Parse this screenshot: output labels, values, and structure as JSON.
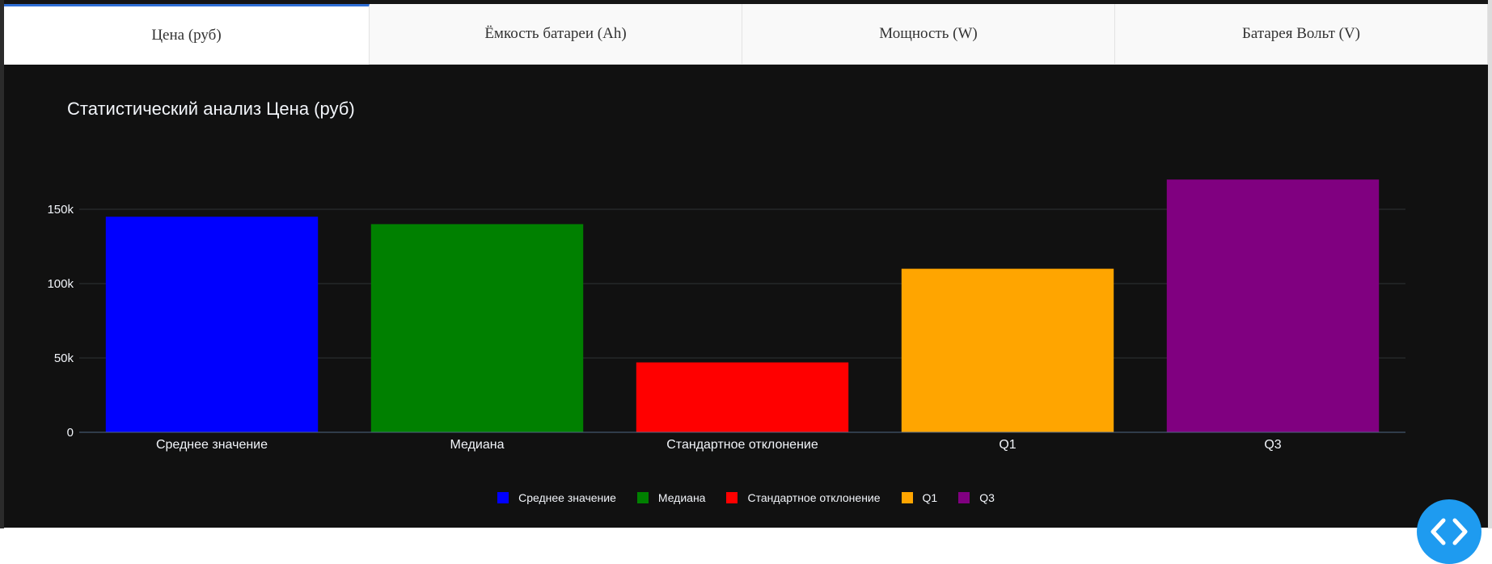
{
  "tabs": [
    {
      "label": "Цена (руб)",
      "active": true
    },
    {
      "label": "Ёмкость батареи (Ah)",
      "active": false
    },
    {
      "label": "Мощность (W)",
      "active": false
    },
    {
      "label": "Батарея Вольт (V)",
      "active": false
    }
  ],
  "chart_data": {
    "type": "bar",
    "title": "Статистический анализ Цена (руб)",
    "xlabel": "",
    "ylabel": "",
    "categories": [
      "Среднее значение",
      "Медиана",
      "Стандартное отклонение",
      "Q1",
      "Q3"
    ],
    "values": [
      145000,
      140000,
      47000,
      110000,
      170000
    ],
    "colors": [
      "#0000ff",
      "#008000",
      "#ff0000",
      "#ffa500",
      "#800080"
    ],
    "ylim": [
      0,
      180000
    ],
    "yticks": [
      0,
      50000,
      100000,
      150000
    ],
    "ytick_labels": [
      "0",
      "50k",
      "100k",
      "150k"
    ],
    "grid": true,
    "legend_position": "bottom",
    "legend": [
      "Среднее значение",
      "Медиана",
      "Стандартное отклонение",
      "Q1",
      "Q3"
    ]
  },
  "icons": {
    "code_button": "code-brackets-icon"
  }
}
